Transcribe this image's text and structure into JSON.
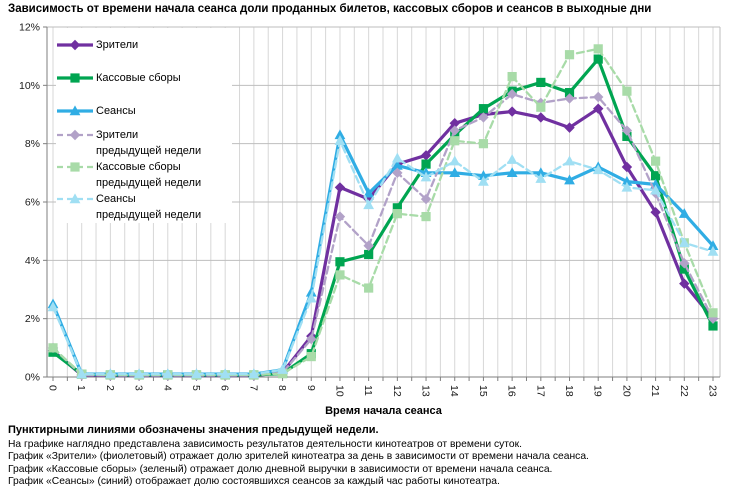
{
  "title": "Зависимость от времени начала сеанса доли проданных билетов, кассовых сборов и сеансов в выходные дни",
  "chart_data": {
    "type": "line",
    "title": "Зависимость от времени начала сеанса доли проданных билетов, кассовых сборов и сеансов в выходные дни",
    "xlabel": "Время начала сеанса",
    "x_categories": [
      "0",
      "1",
      "2",
      "3",
      "4",
      "5",
      "6",
      "7",
      "8",
      "9",
      "10",
      "11",
      "12",
      "13",
      "14",
      "15",
      "16",
      "17",
      "18",
      "19",
      "20",
      "21",
      "22",
      "23"
    ],
    "y_tick_labels": [
      "0%",
      "2%",
      "4%",
      "6%",
      "8%",
      "10%",
      "12%"
    ],
    "ylim": [
      0,
      12
    ],
    "grid": "on",
    "legend_position": "top-left-inside",
    "series": [
      {
        "name": "Зрители",
        "color": "#7030A0",
        "style": "solid",
        "marker": "diamond",
        "values": [
          0.9,
          0.07,
          0.05,
          0.05,
          0.05,
          0.05,
          0.05,
          0.05,
          0.15,
          1.4,
          6.5,
          6.1,
          7.3,
          7.6,
          8.7,
          9.0,
          9.1,
          8.9,
          8.55,
          9.2,
          7.2,
          5.65,
          3.2,
          2.0
        ]
      },
      {
        "name": "Кассовые сборы",
        "color": "#00A551",
        "style": "solid",
        "marker": "square",
        "values": [
          0.85,
          0.1,
          0.07,
          0.07,
          0.07,
          0.07,
          0.07,
          0.07,
          0.12,
          0.8,
          3.95,
          4.2,
          5.8,
          7.3,
          8.3,
          9.2,
          9.8,
          10.1,
          9.75,
          10.9,
          8.25,
          6.9,
          3.7,
          1.75
        ]
      },
      {
        "name": "Сеансы",
        "color": "#30ADE4",
        "style": "solid",
        "marker": "triangle",
        "values": [
          2.5,
          0.1,
          0.1,
          0.1,
          0.1,
          0.1,
          0.1,
          0.1,
          0.25,
          2.9,
          8.3,
          6.3,
          7.25,
          7.0,
          7.0,
          6.9,
          7.0,
          7.0,
          6.75,
          7.2,
          6.7,
          6.6,
          5.6,
          4.5
        ]
      },
      {
        "name": "Зрители предыдущей недели",
        "color": "#B2A2C8",
        "style": "dashed",
        "marker": "diamond",
        "values": [
          1.0,
          0.07,
          0.05,
          0.05,
          0.05,
          0.05,
          0.05,
          0.05,
          0.15,
          1.3,
          5.5,
          4.5,
          7.0,
          6.1,
          8.45,
          8.9,
          9.7,
          9.4,
          9.55,
          9.6,
          8.45,
          6.3,
          3.9,
          2.0
        ]
      },
      {
        "name": "Кассовые сборы предыдущей недели",
        "color": "#A8DBA8",
        "style": "dashed",
        "marker": "square",
        "values": [
          1.0,
          0.1,
          0.07,
          0.07,
          0.07,
          0.07,
          0.07,
          0.07,
          0.12,
          0.7,
          3.5,
          3.05,
          5.6,
          5.5,
          8.1,
          8.0,
          10.3,
          9.25,
          11.05,
          11.25,
          9.8,
          7.4,
          4.6,
          2.2
        ]
      },
      {
        "name": "Сеансы предыдущей недели",
        "color": "#A0DFF3",
        "style": "dashed",
        "marker": "triangle",
        "values": [
          2.4,
          0.1,
          0.1,
          0.1,
          0.1,
          0.1,
          0.1,
          0.1,
          0.25,
          2.7,
          8.1,
          5.9,
          7.5,
          6.85,
          7.4,
          6.7,
          7.45,
          6.8,
          7.4,
          7.1,
          6.5,
          6.4,
          4.6,
          4.3
        ]
      }
    ]
  },
  "legend": {
    "items": [
      {
        "label": "Зрители",
        "label2": ""
      },
      {
        "label": "Кассовые сборы",
        "label2": ""
      },
      {
        "label": "Сеансы",
        "label2": ""
      },
      {
        "label": "Зрители",
        "label2": "предыдущей недели"
      },
      {
        "label": "Кассовые сборы",
        "label2": "предыдущей недели"
      },
      {
        "label": "Сеансы",
        "label2": "предыдущей недели"
      }
    ]
  },
  "footer": {
    "bold_note": "Пунктирными линиями обозначены значения предыдущей недели.",
    "lines": [
      "На графике наглядно представлена зависимость результатов деятельности кинотеатров от времени суток.",
      "График «Зрители» (фиолетовый) отражает долю зрителей кинотеатра за день в зависимости от времени начала сеанса.",
      "График «Кассовые сборы» (зеленый) отражает долю дневной выручки в зависимости от времени начала сеанса.",
      "График «Сеансы» (синий) отображает долю состоявшихся сеансов за каждый час работы кинотеатра."
    ]
  },
  "colors": {
    "grid_vertical": "#D7D7D7",
    "grid_horizontal": "#BEBEBE",
    "axis": "#7F7F7F",
    "text": "#1a1a1a"
  }
}
